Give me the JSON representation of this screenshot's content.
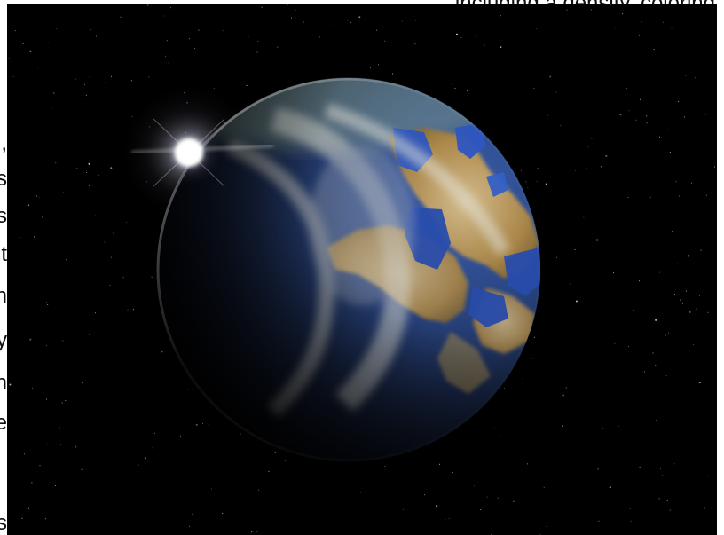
{
  "caption_fragment": ", including a density, coloring",
  "side_letters": [
    ",",
    "s",
    "s",
    "t",
    "n",
    "y",
    "n",
    "e",
    "s"
  ],
  "image": {
    "subject": "planet-in-space",
    "elements": [
      "star-field",
      "sun-flare",
      "planet"
    ],
    "colors": {
      "space": "#000000",
      "ocean": "#2e4f9e",
      "land": "#c9a55a",
      "cloud": "#d8d8d0",
      "sun": "#ffffff"
    }
  }
}
